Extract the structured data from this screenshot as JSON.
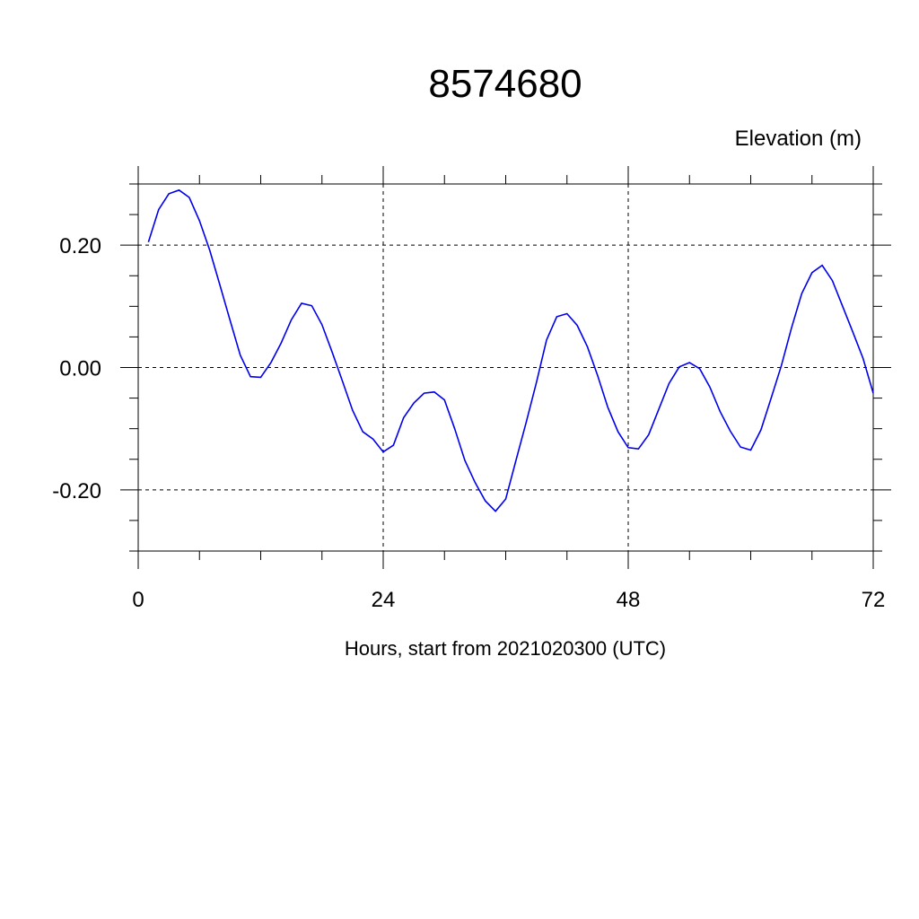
{
  "chart_data": {
    "type": "line",
    "title": "8574680",
    "ylabel": "Elevation (m)",
    "xlabel": "Hours, start from 2021020300 (UTC)",
    "xlim": [
      0,
      72
    ],
    "ylim": [
      -0.3,
      0.3
    ],
    "xticks": [
      0,
      24,
      48,
      72
    ],
    "xtick_labels": [
      "0",
      "24",
      "48",
      "72"
    ],
    "yticks": [
      -0.2,
      0.0,
      0.2
    ],
    "ytick_labels": [
      "-0.20",
      "0.00",
      "0.20"
    ],
    "x_minor_step": 6,
    "y_minor_step": 0.05,
    "grid": true,
    "series_color": "#0000ee",
    "series": [
      {
        "x": [
          1,
          2,
          3,
          4,
          5,
          6,
          7,
          8,
          9,
          10,
          11,
          12,
          13,
          14,
          15,
          16,
          17,
          18,
          19,
          20,
          21,
          22,
          23,
          24,
          25,
          26,
          27,
          28,
          29,
          30,
          31,
          32,
          33,
          34,
          35,
          36,
          37,
          38,
          39,
          40,
          41,
          42,
          43,
          44,
          45,
          46,
          47,
          48,
          49,
          50,
          51,
          52,
          53,
          54,
          55,
          56,
          57,
          58,
          59,
          60,
          61,
          62,
          63,
          64,
          65,
          66,
          67,
          68,
          69,
          70,
          71,
          72
        ],
        "values": [
          0.205,
          0.258,
          0.284,
          0.29,
          0.278,
          0.24,
          0.192,
          0.135,
          0.077,
          0.02,
          -0.015,
          -0.016,
          0.008,
          0.04,
          0.078,
          0.105,
          0.101,
          0.07,
          0.025,
          -0.022,
          -0.07,
          -0.105,
          -0.117,
          -0.138,
          -0.127,
          -0.082,
          -0.058,
          -0.042,
          -0.04,
          -0.053,
          -0.1,
          -0.152,
          -0.188,
          -0.218,
          -0.235,
          -0.215,
          -0.152,
          -0.09,
          -0.025,
          0.045,
          0.083,
          0.088,
          0.069,
          0.034,
          -0.013,
          -0.065,
          -0.105,
          -0.131,
          -0.133,
          -0.11,
          -0.068,
          -0.026,
          0.001,
          0.008,
          -0.002,
          -0.032,
          -0.072,
          -0.104,
          -0.13,
          -0.135,
          -0.102,
          -0.05,
          0.003,
          0.065,
          0.121,
          0.155,
          0.167,
          0.142,
          0.1,
          0.058,
          0.015,
          -0.042
        ]
      }
    ]
  }
}
